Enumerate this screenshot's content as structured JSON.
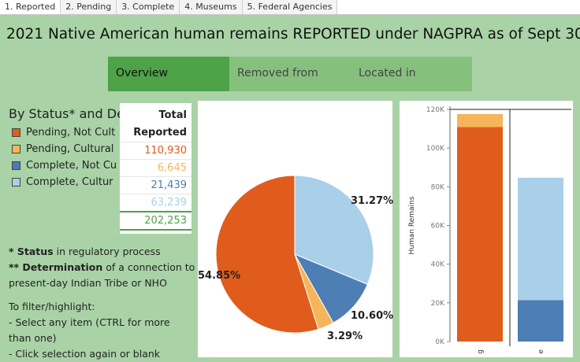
{
  "tabs": [
    "1. Reported",
    "2. Pending",
    "3. Complete",
    "4. Museums",
    "5. Federal Agencies"
  ],
  "title": "2021 Native American human remains REPORTED under NAGPRA as of Sept 30",
  "nav": {
    "overview": "Overview",
    "removed": "Removed from",
    "located": "Located in"
  },
  "legend": {
    "title": "By Status* and De",
    "items": [
      {
        "label": "Pending, Not Cult",
        "color": "#e05c1d"
      },
      {
        "label": "Pending, Cultural",
        "color": "#f6b55a"
      },
      {
        "label": "Complete, Not Cu",
        "color": "#4d7eb4"
      },
      {
        "label": "Complete, Cultur",
        "color": "#a9cfe9"
      }
    ]
  },
  "totals": {
    "header1": "Total",
    "header2": "Reported",
    "values": [
      "110,930",
      "6,645",
      "21,439",
      "63,239"
    ],
    "value_colors": [
      "#e05c1d",
      "#f6b55a",
      "#4d7eb4",
      "#a9cfe9"
    ],
    "sum": "202,253",
    "sum_color": "#4ea248"
  },
  "notes": {
    "status_bold": "* Status",
    "status_rest": " in regulatory process",
    "det_bold": "** Determination",
    "det_rest": " of a connection to",
    "det_line2": "present-day Indian Tribe or NHO",
    "filter_head": "To filter/highlight:",
    "filter_1": "- Select any item (CTRL for more",
    "filter_2": "than one)",
    "filter_3": "- Click selection again or blank"
  },
  "chart_data": [
    {
      "type": "pie",
      "slices": [
        {
          "name": "Pending, Not Culturally Affiliated",
          "value": 54.85,
          "label": "54.85%",
          "color": "#e05c1d"
        },
        {
          "name": "Pending, Culturally Affiliated",
          "value": 3.29,
          "label": "3.29%",
          "color": "#f6b55a"
        },
        {
          "name": "Complete, Not Culturally Affiliated",
          "value": 10.6,
          "label": "10.60%",
          "color": "#4d7eb4"
        },
        {
          "name": "Complete, Culturally Affiliated",
          "value": 31.27,
          "label": "31.27%",
          "color": "#a9cfe9"
        }
      ]
    },
    {
      "type": "bar",
      "stacked": true,
      "ylabel": "Human Remains",
      "ylim": [
        0,
        120000
      ],
      "yticks": [
        "0K",
        "20K",
        "40K",
        "60K",
        "80K",
        "100K",
        "120K"
      ],
      "categories": [
        "Pending",
        "Complete"
      ],
      "category_labels": [
        "g",
        "e"
      ],
      "series": [
        {
          "name": "Not Culturally Affiliated",
          "colors": [
            "#e05c1d",
            "#4d7eb4"
          ],
          "values": [
            110930,
            21439
          ]
        },
        {
          "name": "Culturally Affiliated",
          "colors": [
            "#f6b55a",
            "#a9cfe9"
          ],
          "values": [
            6645,
            63239
          ]
        }
      ]
    }
  ]
}
